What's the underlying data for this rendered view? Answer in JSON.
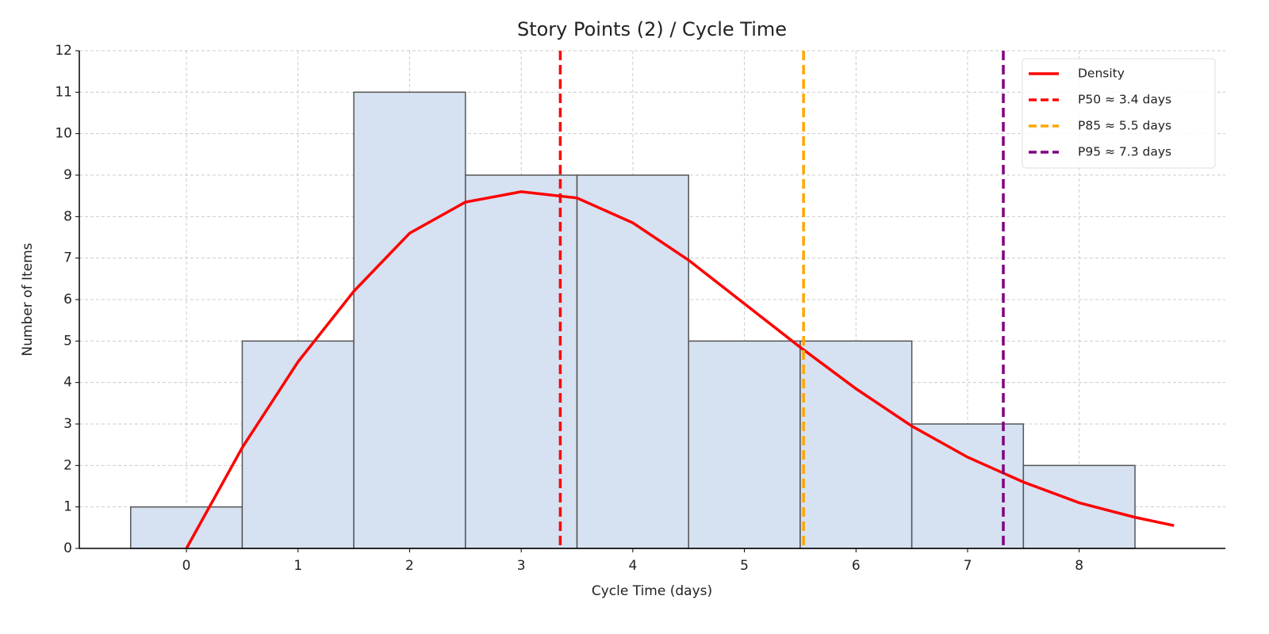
{
  "chart_data": {
    "type": "histogram",
    "title": "Story Points (2) / Cycle Time",
    "x_label": "Cycle Time (days)",
    "y_label": "Number of Items",
    "bins": [
      -0.5,
      0.5,
      1.5,
      2.5,
      3.5,
      4.5,
      5.5,
      6.5,
      7.5,
      8.5
    ],
    "values": [
      1,
      5,
      11,
      9,
      9,
      5,
      5,
      3,
      2
    ],
    "color": "#d6e1f2",
    "edge_color": "#555555",
    "xlim": [
      -0.96,
      9.31
    ],
    "xticks": [
      0,
      1,
      2,
      3,
      4,
      5,
      6,
      7,
      8
    ],
    "ylim": [
      0,
      12
    ],
    "yticks": [
      0,
      1,
      2,
      3,
      4,
      5,
      6,
      7,
      8,
      9,
      10,
      11,
      12
    ],
    "grid": true,
    "legend_position": "upper right",
    "density": {
      "name": "Density",
      "color": "#ff0000",
      "x": [
        0,
        0.5,
        1,
        1.5,
        2,
        2.5,
        3,
        3.5,
        4,
        4.5,
        5,
        5.5,
        6,
        6.5,
        7,
        7.5,
        8,
        8.5,
        8.85
      ],
      "values": [
        0,
        2.43,
        4.5,
        6.2,
        7.6,
        8.35,
        8.6,
        8.45,
        7.85,
        6.95,
        5.9,
        4.85,
        3.85,
        2.95,
        2.2,
        1.6,
        1.1,
        0.75,
        0.55
      ]
    },
    "vlines": [
      {
        "name": "P50 ≈ 3.4 days",
        "color": "#ff0000",
        "value": 3.35
      },
      {
        "name": "P85 ≈ 5.5 days",
        "color": "#ffa500",
        "value": 5.53
      },
      {
        "name": "P95 ≈ 7.3 days",
        "color": "#800080",
        "value": 7.32
      }
    ]
  }
}
